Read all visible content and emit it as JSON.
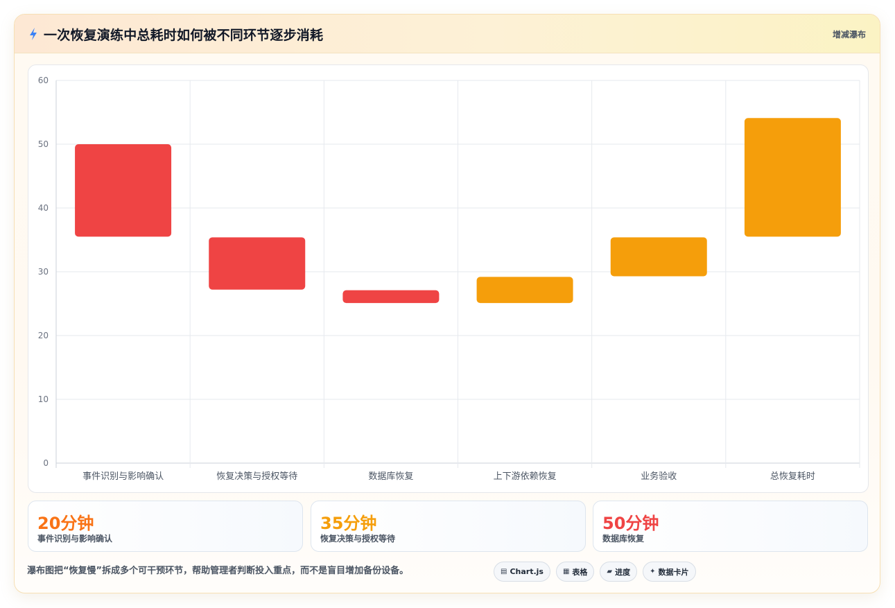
{
  "header": {
    "title": "一次恢复演练中总耗时如何被不同环节逐步消耗",
    "tag": "增减瀑布"
  },
  "chart_data": {
    "type": "bar",
    "subtype": "floating-waterfall",
    "categories": [
      "事件识别与影响确认",
      "恢复决策与授权等待",
      "数据库恢复",
      "上下游依赖恢复",
      "业务验收",
      "总恢复耗时"
    ],
    "series": [
      {
        "ranges": [
          [
            35.5,
            50
          ],
          [
            27.2,
            35.4
          ],
          [
            25.1,
            27.1
          ],
          [
            25.1,
            29.2
          ],
          [
            29.3,
            35.4
          ],
          [
            35.5,
            54.1
          ]
        ],
        "colors": [
          "#ef4444",
          "#ef4444",
          "#ef4444",
          "#f59e0b",
          "#f59e0b",
          "#f59e0b"
        ]
      }
    ],
    "y_ticks": [
      "0",
      "10",
      "20",
      "30",
      "40",
      "50",
      "60"
    ],
    "ylim": [
      0,
      60
    ],
    "grid": true,
    "legend": "none"
  },
  "stats": [
    {
      "value": "20分钟",
      "label": "事件识别与影响确认",
      "color": "#f97316"
    },
    {
      "value": "35分钟",
      "label": "恢复决策与授权等待",
      "color": "#f59e0b"
    },
    {
      "value": "50分钟",
      "label": "数据库恢复",
      "color": "#ef4444"
    }
  ],
  "footer": {
    "note": "瀑布图把“恢复慢”拆成多个可干预环节，帮助管理者判断投入重点，而不是盲目增加备份设备。",
    "chips": [
      {
        "icon": "chart-icon",
        "label": "Chart.js"
      },
      {
        "icon": "table-icon",
        "label": "表格"
      },
      {
        "icon": "progress-icon",
        "label": "进度"
      },
      {
        "icon": "card-icon",
        "label": "数据卡片"
      }
    ]
  }
}
